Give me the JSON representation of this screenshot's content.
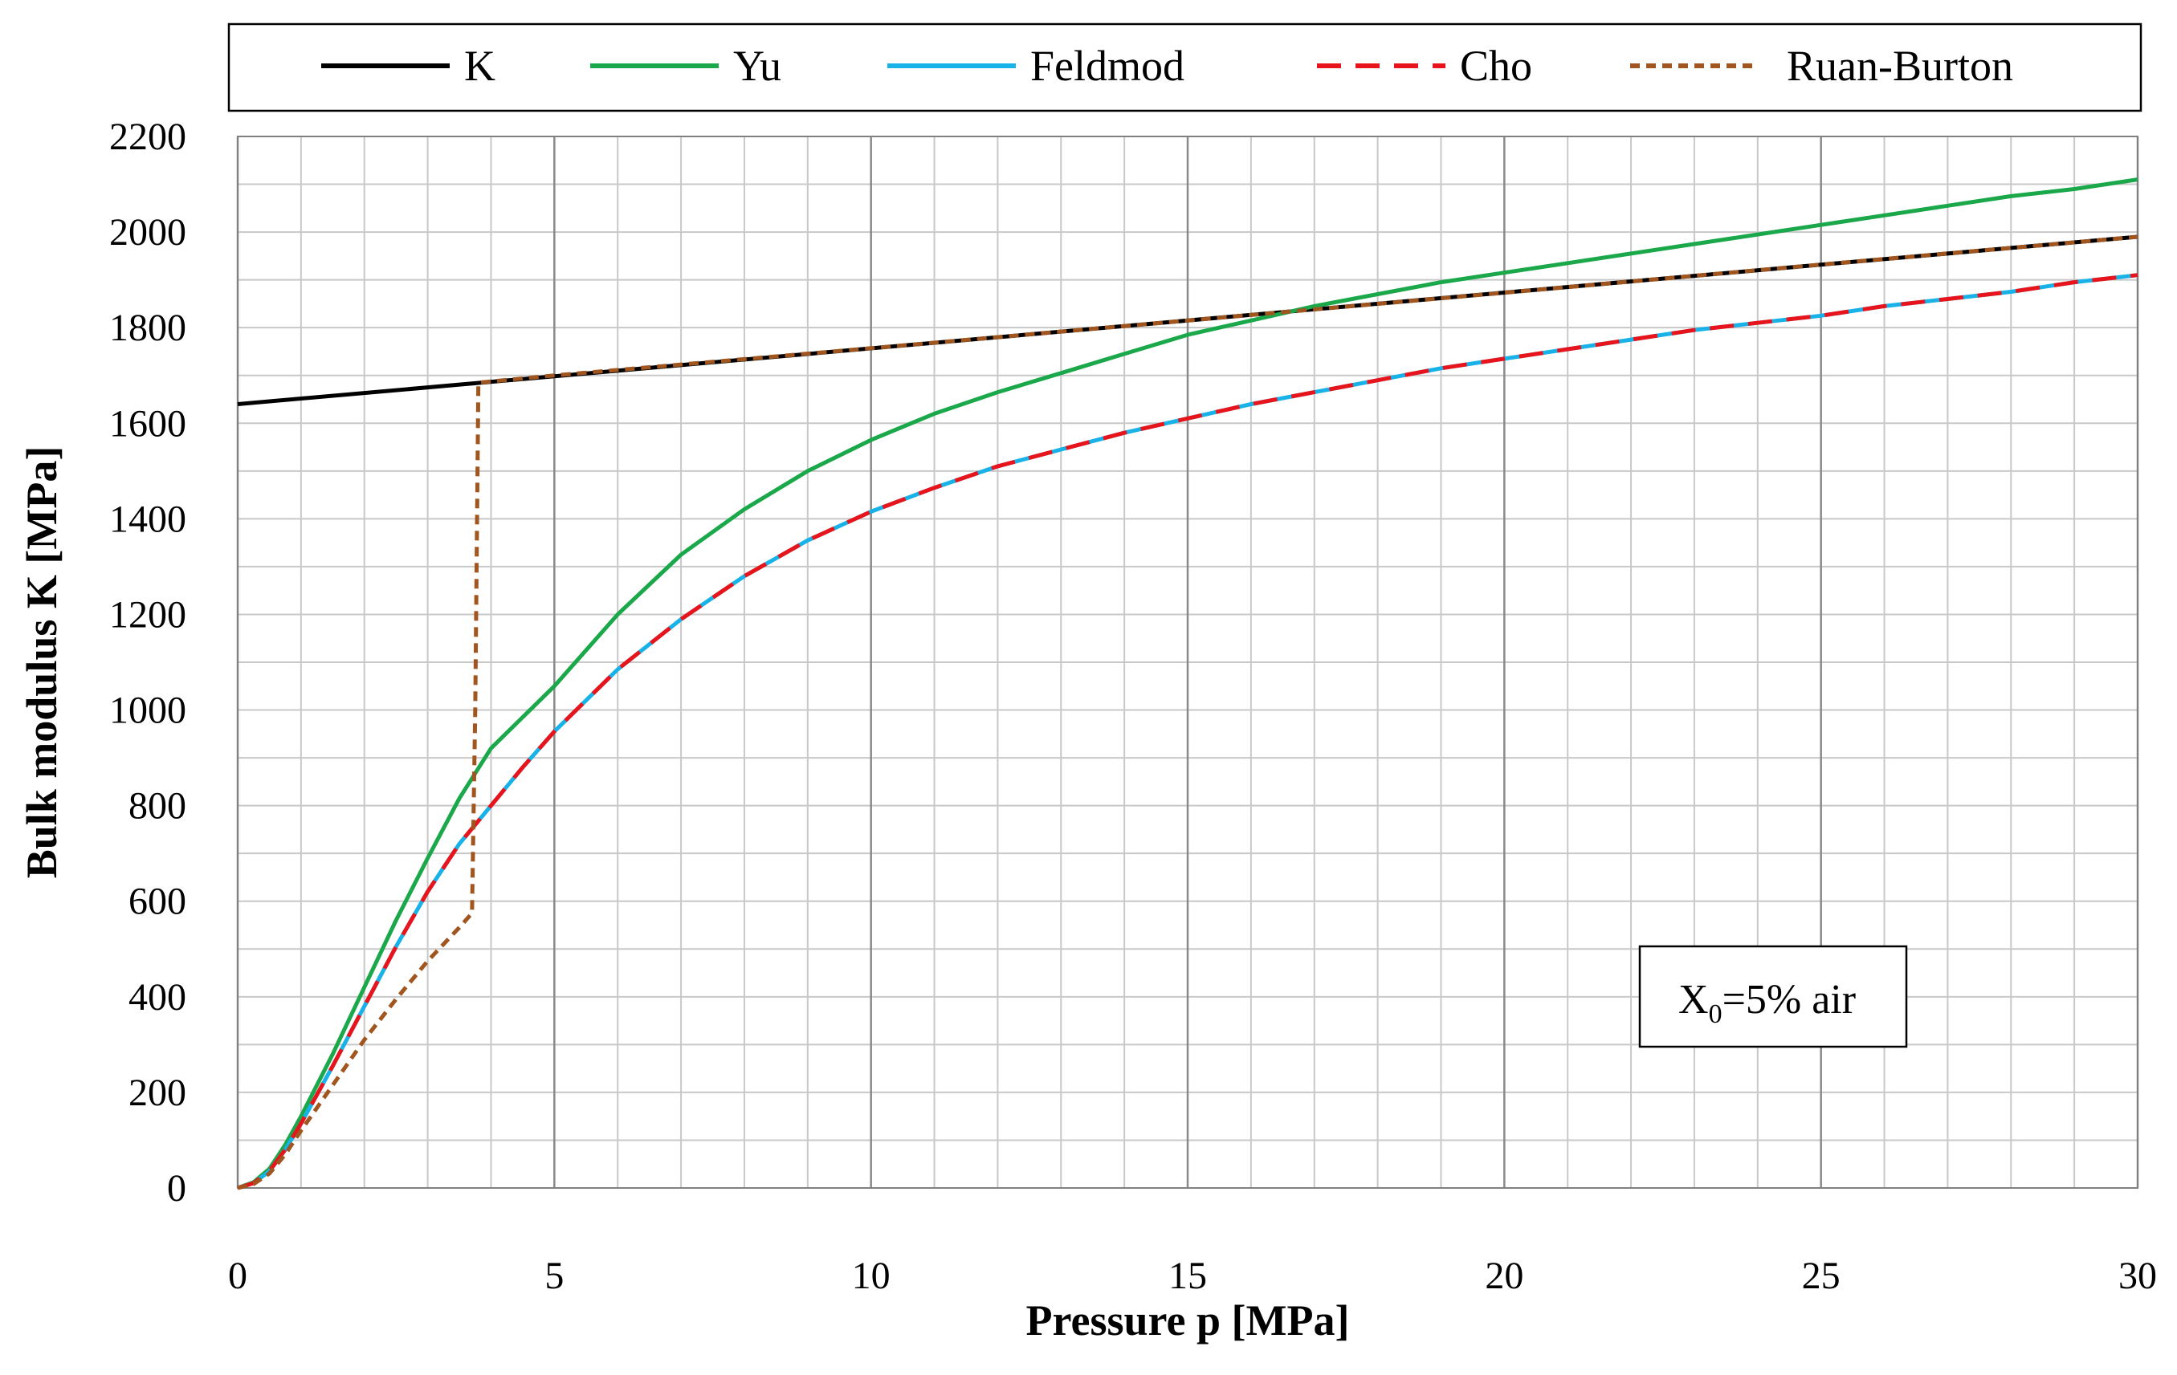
{
  "chart_data": {
    "type": "line",
    "title": "",
    "xlabel": "Pressure p [MPa]",
    "ylabel": "Bulk modulus K [MPa]",
    "xlim": [
      0,
      30
    ],
    "ylim": [
      0,
      2200
    ],
    "xticks": [
      0,
      5,
      10,
      15,
      20,
      25,
      30
    ],
    "xtick_labels": [
      "0",
      "5",
      "10",
      "15",
      "20",
      "25",
      "30"
    ],
    "yticks": [
      0,
      200,
      400,
      600,
      800,
      1000,
      1200,
      1400,
      1600,
      1800,
      2000,
      2200
    ],
    "ytick_labels": [
      "0",
      "200",
      "400",
      "600",
      "800",
      "1000",
      "1200",
      "1400",
      "1600",
      "1800",
      "2000",
      "2200"
    ],
    "x_minor_step": 1,
    "y_minor_step": 100,
    "grid": true,
    "legend_position": "top",
    "annotation": {
      "base": "X",
      "subscript": "0",
      "rest": "=5% air"
    },
    "series": [
      {
        "name": "K",
        "color": "#000000",
        "dash": "solid",
        "x": [
          0,
          30
        ],
        "y": [
          1640,
          1990
        ]
      },
      {
        "name": "Yu",
        "color": "#1aa84a",
        "dash": "solid",
        "x": [
          0,
          0.25,
          0.5,
          0.75,
          1,
          1.5,
          2,
          2.5,
          3,
          3.5,
          4,
          4.5,
          5,
          6,
          7,
          8,
          9,
          10,
          11,
          12,
          13,
          14,
          15,
          16,
          17,
          18,
          19,
          20,
          21,
          22,
          23,
          24,
          25,
          26,
          27,
          28,
          29,
          30
        ],
        "y": [
          0,
          12,
          40,
          90,
          150,
          280,
          420,
          560,
          690,
          815,
          920,
          985,
          1050,
          1200,
          1325,
          1420,
          1500,
          1565,
          1620,
          1665,
          1705,
          1745,
          1785,
          1815,
          1845,
          1870,
          1895,
          1915,
          1935,
          1955,
          1975,
          1995,
          2015,
          2035,
          2055,
          2075,
          2090,
          2110
        ]
      },
      {
        "name": "Feldmod",
        "color": "#19b2e8",
        "dash": "solid",
        "x": [
          0,
          0.25,
          0.5,
          0.75,
          1,
          1.5,
          2,
          2.5,
          3,
          3.5,
          4,
          4.5,
          5,
          6,
          7,
          8,
          9,
          10,
          11,
          12,
          13,
          14,
          15,
          16,
          17,
          18,
          19,
          20,
          21,
          22,
          23,
          24,
          25,
          26,
          27,
          28,
          29,
          30
        ],
        "y": [
          0,
          10,
          35,
          80,
          135,
          255,
          380,
          505,
          620,
          720,
          800,
          880,
          955,
          1085,
          1190,
          1280,
          1355,
          1415,
          1465,
          1510,
          1545,
          1580,
          1610,
          1640,
          1665,
          1690,
          1715,
          1735,
          1755,
          1775,
          1795,
          1810,
          1825,
          1845,
          1860,
          1875,
          1895,
          1910
        ]
      },
      {
        "name": "Cho",
        "color": "#e8141c",
        "dash": "dashed",
        "x": [
          0,
          0.25,
          0.5,
          0.75,
          1,
          1.5,
          2,
          2.5,
          3,
          3.5,
          4,
          4.5,
          5,
          6,
          7,
          8,
          9,
          10,
          11,
          12,
          13,
          14,
          15,
          16,
          17,
          18,
          19,
          20,
          21,
          22,
          23,
          24,
          25,
          26,
          27,
          28,
          29,
          30
        ],
        "y": [
          0,
          10,
          35,
          80,
          135,
          255,
          380,
          505,
          620,
          720,
          800,
          880,
          955,
          1085,
          1190,
          1280,
          1355,
          1415,
          1465,
          1510,
          1545,
          1580,
          1610,
          1640,
          1665,
          1690,
          1715,
          1735,
          1755,
          1775,
          1795,
          1810,
          1825,
          1845,
          1860,
          1875,
          1895,
          1910
        ]
      },
      {
        "name": "Ruan-Burton",
        "color": "#a0561e",
        "dash": "dotted",
        "x": [
          0,
          0.25,
          0.5,
          0.75,
          1,
          1.5,
          2,
          2.5,
          3,
          3.5,
          3.7,
          3.75,
          3.8,
          5,
          10,
          15,
          20,
          25,
          30
        ],
        "y": [
          0,
          8,
          30,
          70,
          120,
          215,
          310,
          395,
          475,
          545,
          575,
          1000,
          1685,
          1700,
          1757,
          1815,
          1873,
          1932,
          1990
        ]
      }
    ]
  }
}
